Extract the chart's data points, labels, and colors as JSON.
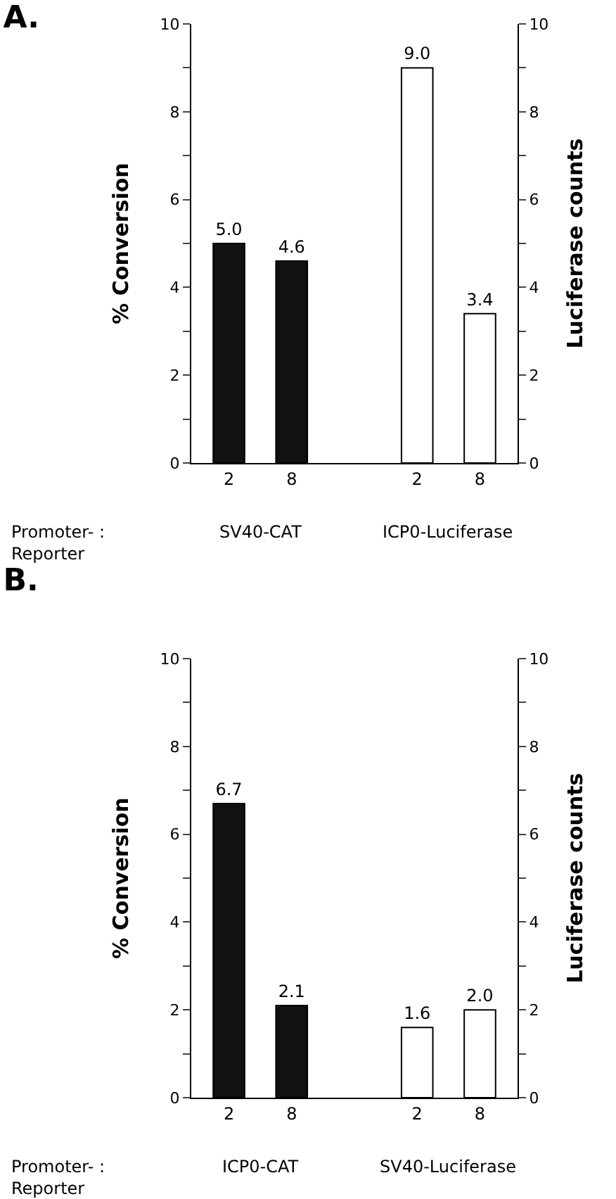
{
  "chart_data": [
    {
      "type": "bar",
      "title": "A.",
      "ylabel": "% Conversion",
      "y2label": "Luciferase counts",
      "categories": [
        "2",
        "8",
        null,
        "2",
        "8"
      ],
      "series": [
        {
          "color": "#111111",
          "values": [
            5.0,
            4.6,
            null,
            null,
            null
          ],
          "value_labels": [
            "5.0",
            "4.6",
            null,
            null,
            null
          ]
        },
        {
          "color": "#ffffff",
          "axis": "y2",
          "values": [
            null,
            null,
            null,
            9.0,
            3.4
          ],
          "value_labels": [
            null,
            null,
            null,
            "9.0",
            "3.4"
          ]
        }
      ],
      "ylim": [
        0,
        10
      ],
      "yticks": [
        0,
        {
          "value": 1,
          "label": null
        },
        2,
        {
          "value": 3,
          "label": null
        },
        4,
        {
          "value": 5,
          "label": null
        },
        6,
        {
          "value": 7,
          "label": null
        },
        8,
        {
          "value": 9,
          "label": null
        },
        10
      ],
      "y2lim": [
        0,
        10
      ],
      "y2ticks": [
        0,
        {
          "value": 1,
          "label": null
        },
        2,
        {
          "value": 3,
          "label": null
        },
        4,
        {
          "value": 5,
          "label": null
        },
        6,
        {
          "value": 7,
          "label": null
        },
        8,
        {
          "value": 9,
          "label": null
        },
        10
      ],
      "grid": false,
      "annotations": [
        "Promoter- :\nReporter",
        "SV40-CAT",
        "ICP0-Luciferase"
      ]
    },
    {
      "type": "bar",
      "title": "B.",
      "ylabel": "% Conversion",
      "y2label": "Luciferase counts",
      "categories": [
        "2",
        "8",
        null,
        "2",
        "8"
      ],
      "series": [
        {
          "color": "#111111",
          "values": [
            6.7,
            2.1,
            null,
            null,
            null
          ],
          "value_labels": [
            "6.7",
            "2.1",
            null,
            null,
            null
          ]
        },
        {
          "color": "#ffffff",
          "axis": "y2",
          "values": [
            null,
            null,
            null,
            1.6,
            2.0
          ],
          "value_labels": [
            null,
            null,
            null,
            "1.6",
            "2.0"
          ]
        }
      ],
      "ylim": [
        0,
        10
      ],
      "yticks": [
        0,
        {
          "value": 1,
          "label": null
        },
        2,
        {
          "value": 3,
          "label": null
        },
        4,
        {
          "value": 5,
          "label": null
        },
        6,
        {
          "value": 7,
          "label": null
        },
        8,
        {
          "value": 9,
          "label": null
        },
        10
      ],
      "y2lim": [
        0,
        10
      ],
      "y2ticks": [
        0,
        {
          "value": 1,
          "label": null
        },
        2,
        {
          "value": 3,
          "label": null
        },
        4,
        {
          "value": 5,
          "label": null
        },
        6,
        {
          "value": 7,
          "label": null
        },
        8,
        {
          "value": 9,
          "label": null
        },
        10
      ],
      "grid": false,
      "annotations": [
        "Promoter- :\nReporter",
        "ICP0-CAT",
        "SV40-Luciferase"
      ]
    }
  ]
}
